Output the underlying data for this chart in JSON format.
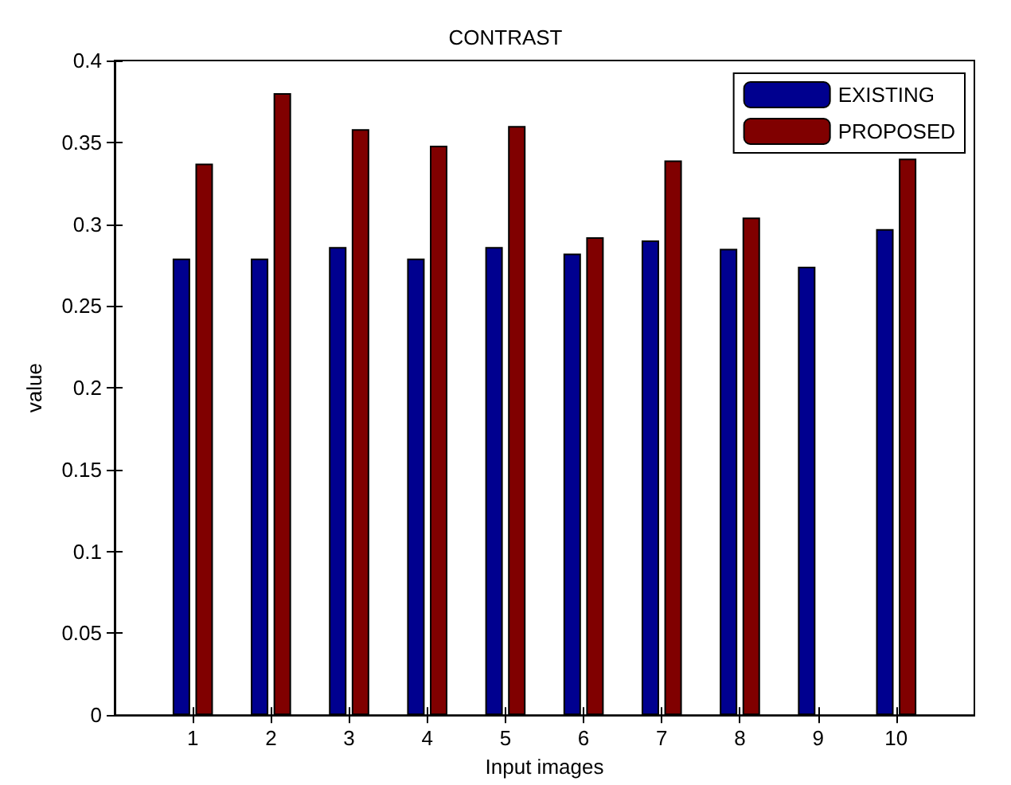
{
  "chart_data": {
    "type": "bar",
    "title": "CONTRAST",
    "xlabel": "Input images",
    "ylabel": "value",
    "x": [
      1,
      2,
      3,
      4,
      5,
      6,
      7,
      8,
      9,
      10
    ],
    "series": [
      {
        "name": "EXISTING",
        "color": "#00008f",
        "values": [
          0.279,
          0.279,
          0.286,
          0.279,
          0.286,
          0.282,
          0.29,
          0.285,
          0.274,
          0.297
        ]
      },
      {
        "name": "PROPOSED",
        "color": "#800000",
        "values": [
          0.337,
          0.38,
          0.358,
          0.348,
          0.36,
          0.292,
          0.339,
          0.304,
          null,
          0.34
        ]
      }
    ],
    "xlim": [
      0,
      11
    ],
    "xticks": [
      1,
      2,
      3,
      4,
      5,
      6,
      7,
      8,
      9,
      10
    ],
    "ylim": [
      0,
      0.4
    ],
    "yticks": [
      0,
      0.05,
      0.1,
      0.15,
      0.2,
      0.25,
      0.3,
      0.35,
      0.4
    ],
    "grid": false,
    "legend": "top right"
  }
}
